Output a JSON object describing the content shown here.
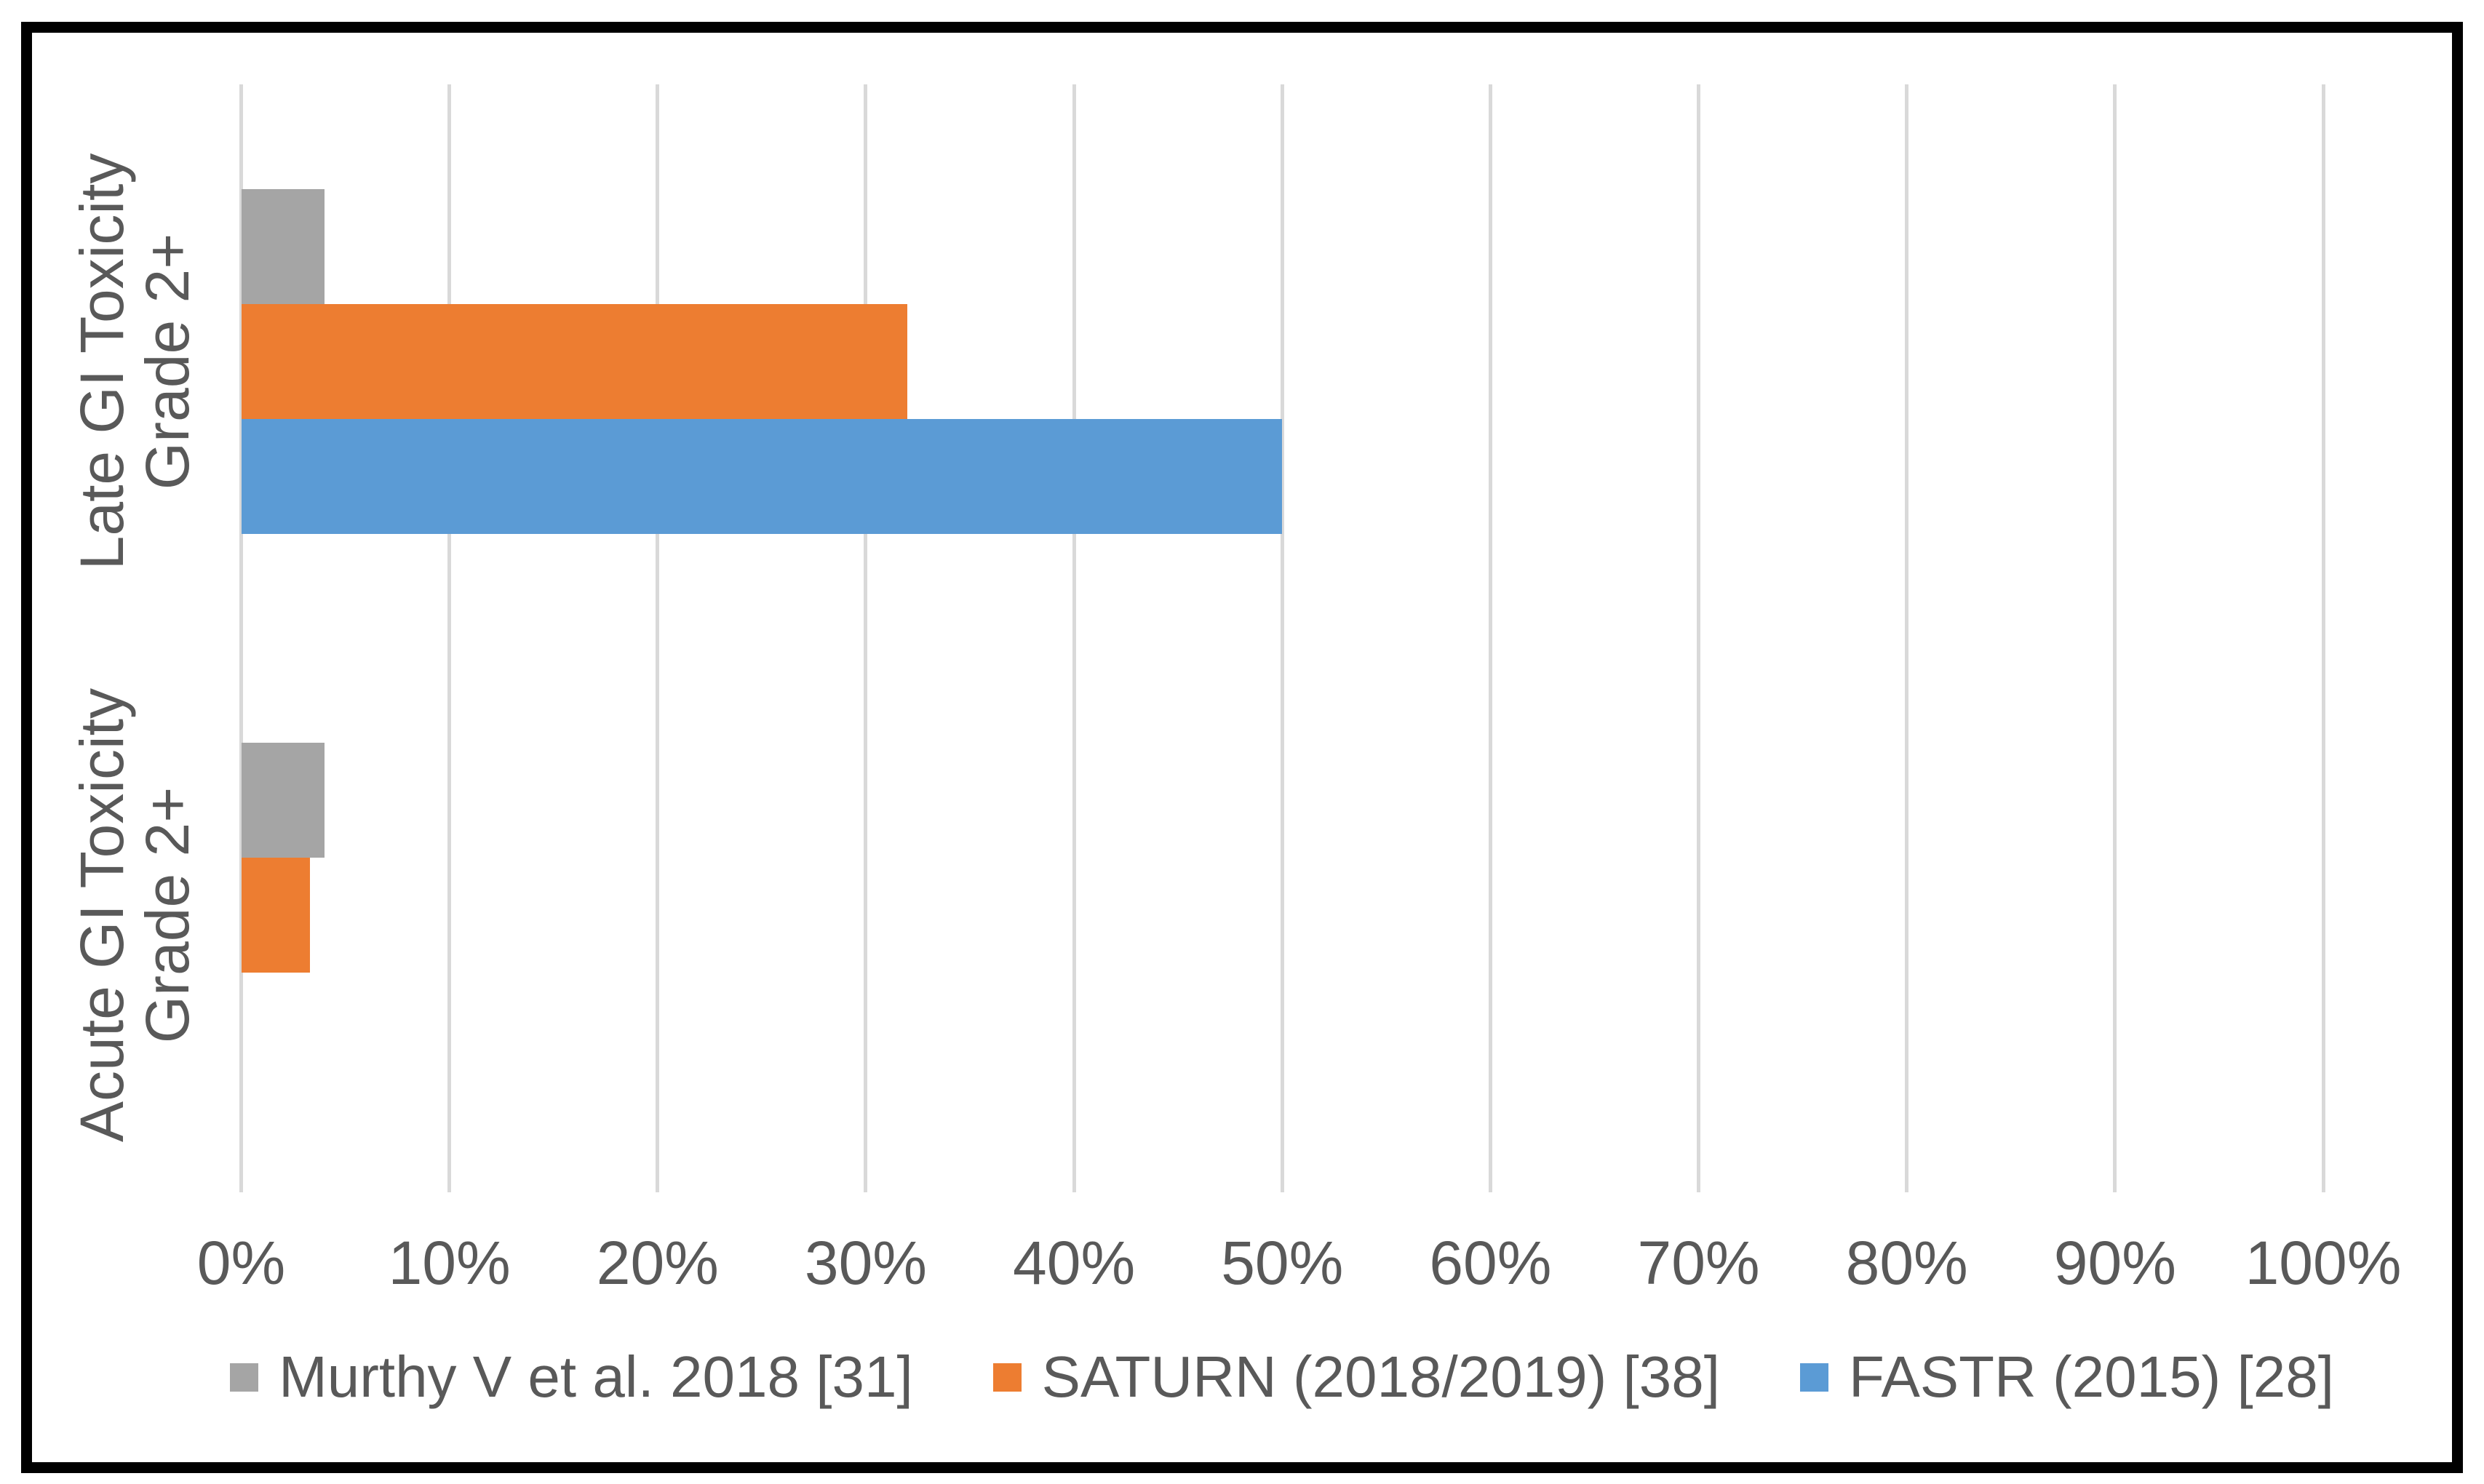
{
  "chart_data": {
    "type": "bar",
    "orientation": "horizontal",
    "title": "",
    "xlabel": "",
    "ylabel": "",
    "categories": [
      {
        "label_lines": [
          "Late GI Toxicity",
          "Grade 2+"
        ]
      },
      {
        "label_lines": [
          "Acute GI Toxicity",
          "Grade 2+"
        ]
      }
    ],
    "series": [
      {
        "name": "Murthy V et al. 2018 [31]",
        "color": "#A5A5A5",
        "values": [
          4,
          4
        ]
      },
      {
        "name": "SATURN (2018/2019) [38]",
        "color": "#ED7D31",
        "values": [
          32,
          3.3
        ]
      },
      {
        "name": "FASTR (2015) [28]",
        "color": "#5B9BD5",
        "values": [
          50,
          0
        ]
      }
    ],
    "x_ticks": [
      "0%",
      "10%",
      "20%",
      "30%",
      "40%",
      "50%",
      "60%",
      "70%",
      "80%",
      "90%",
      "100%"
    ],
    "x_tick_values": [
      0,
      10,
      20,
      30,
      40,
      50,
      60,
      70,
      80,
      90,
      100
    ],
    "xlim": [
      0,
      100
    ],
    "grid": true,
    "gridline_color": "#D9D9D9",
    "axis_text_color": "#595959",
    "plot_background": "#FFFFFF",
    "frame_border_color": "#000000",
    "legend_position": "bottom"
  }
}
